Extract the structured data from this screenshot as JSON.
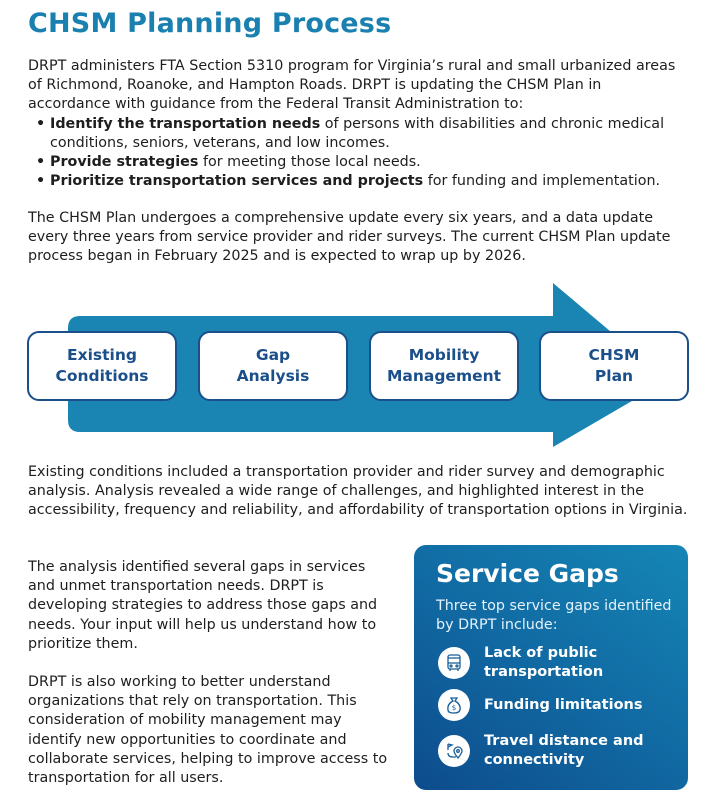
{
  "title": "CHSM Planning Process",
  "intro": {
    "text": "DRPT administers FTA Section 5310 program for Virginia’s rural and small urbanized areas of Richmond, Roanoke, and Hampton Roads. DRPT is updating the CHSM Plan in accordance with guidance from the Federal Transit Administration to:",
    "bullets": [
      {
        "bold": "Identify the transportation needs",
        "rest": " of persons with disabilities and chronic medical conditions, seniors, veterans, and low incomes."
      },
      {
        "bold": "Provide strategies",
        "rest": " for meeting those local needs."
      },
      {
        "bold": "Prioritize transportation services and projects",
        "rest": " for funding and implementation."
      }
    ]
  },
  "update_paragraph": "The CHSM Plan undergoes a comprehensive update every six years, and a data update every three years from service provider and rider surveys. The current CHSM Plan update process began in February 2025 and is expected to wrap up by 2026.",
  "process_steps": [
    {
      "line1": "Existing",
      "line2": "Conditions"
    },
    {
      "line1": "Gap",
      "line2": "Analysis"
    },
    {
      "line1": "Mobility",
      "line2": "Management"
    },
    {
      "line1": "CHSM",
      "line2": "Plan"
    }
  ],
  "existing_paragraph": "Existing conditions included a transportation provider and rider survey and demographic analysis. Analysis revealed a wide range of challenges, and highlighted interest in the accessibility, frequency and reliability, and affordability of transportation options in Virginia.",
  "gap_paragraph": "The analysis identified several gaps in services and unmet transportation needs. DRPT is developing strategies to address those gaps and needs. Your input will help us understand how to prioritize them.",
  "mobility_paragraph": "DRPT is also working to better understand organizations that rely on transportation. This consideration of mobility management may identify new opportunities to coordinate and collaborate services, helping to improve access to transportation for all users.",
  "service_gaps": {
    "title": "Service Gaps",
    "subtitle": "Three top service gaps identified by DRPT include:",
    "items": [
      {
        "icon": "bus-icon",
        "label": "Lack of public transportation"
      },
      {
        "icon": "money-bag-icon",
        "label": "Funding limitations"
      },
      {
        "icon": "route-pin-icon",
        "label": "Travel distance and connectivity"
      }
    ]
  },
  "colors": {
    "title": "#1a80b0",
    "arrow": "#1a85b2",
    "step_border": "#1b4f8a",
    "panel_dark": "#0d4c8c",
    "panel_light": "#1586b6"
  }
}
